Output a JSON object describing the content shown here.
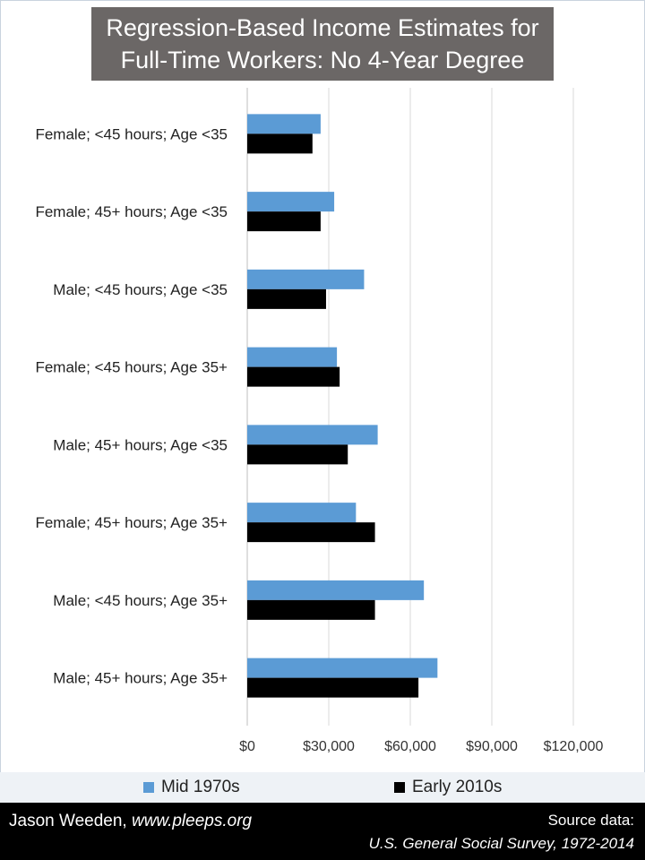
{
  "title": {
    "line1": "Regression-Based Income Estimates for",
    "line2": "Full-Time Workers: No 4-Year Degree"
  },
  "colors": {
    "mid_1970s": "#5b9bd5",
    "early_2010s": "#000000",
    "gridline": "#d9d9d9",
    "title_bg": "#6b6766"
  },
  "chart_data": {
    "type": "bar",
    "orientation": "horizontal",
    "title": "Regression-Based Income Estimates for Full-Time Workers: No 4-Year Degree",
    "categories": [
      "Female; <45 hours; Age <35",
      "Female; 45+ hours; Age <35",
      "Male; <45 hours; Age <35",
      "Female; <45 hours; Age 35+",
      "Male; 45+ hours; Age <35",
      "Female; 45+ hours; Age 35+",
      "Male; <45 hours; Age 35+",
      "Male; 45+ hours; Age 35+"
    ],
    "series": [
      {
        "name": "Mid 1970s",
        "values": [
          27000,
          32000,
          43000,
          33000,
          48000,
          40000,
          65000,
          70000
        ]
      },
      {
        "name": "Early 2010s",
        "values": [
          24000,
          27000,
          29000,
          34000,
          37000,
          47000,
          47000,
          63000
        ]
      }
    ],
    "xlim": [
      0,
      120000
    ],
    "ticks": [
      "$0",
      "$30,000",
      "$60,000",
      "$90,000",
      "$120,000"
    ],
    "tick_values": [
      0,
      30000,
      60000,
      90000,
      120000
    ],
    "grid": true,
    "legend_position": "bottom"
  },
  "legend": {
    "mid_label": "Mid 1970s",
    "early_label": "Early 2010s"
  },
  "footer": {
    "author": "Jason Weeden, ",
    "site": "www.pleeps.org",
    "source_line1": "Source data:",
    "source_line2": "U.S. General Social Survey, 1972-2014"
  }
}
